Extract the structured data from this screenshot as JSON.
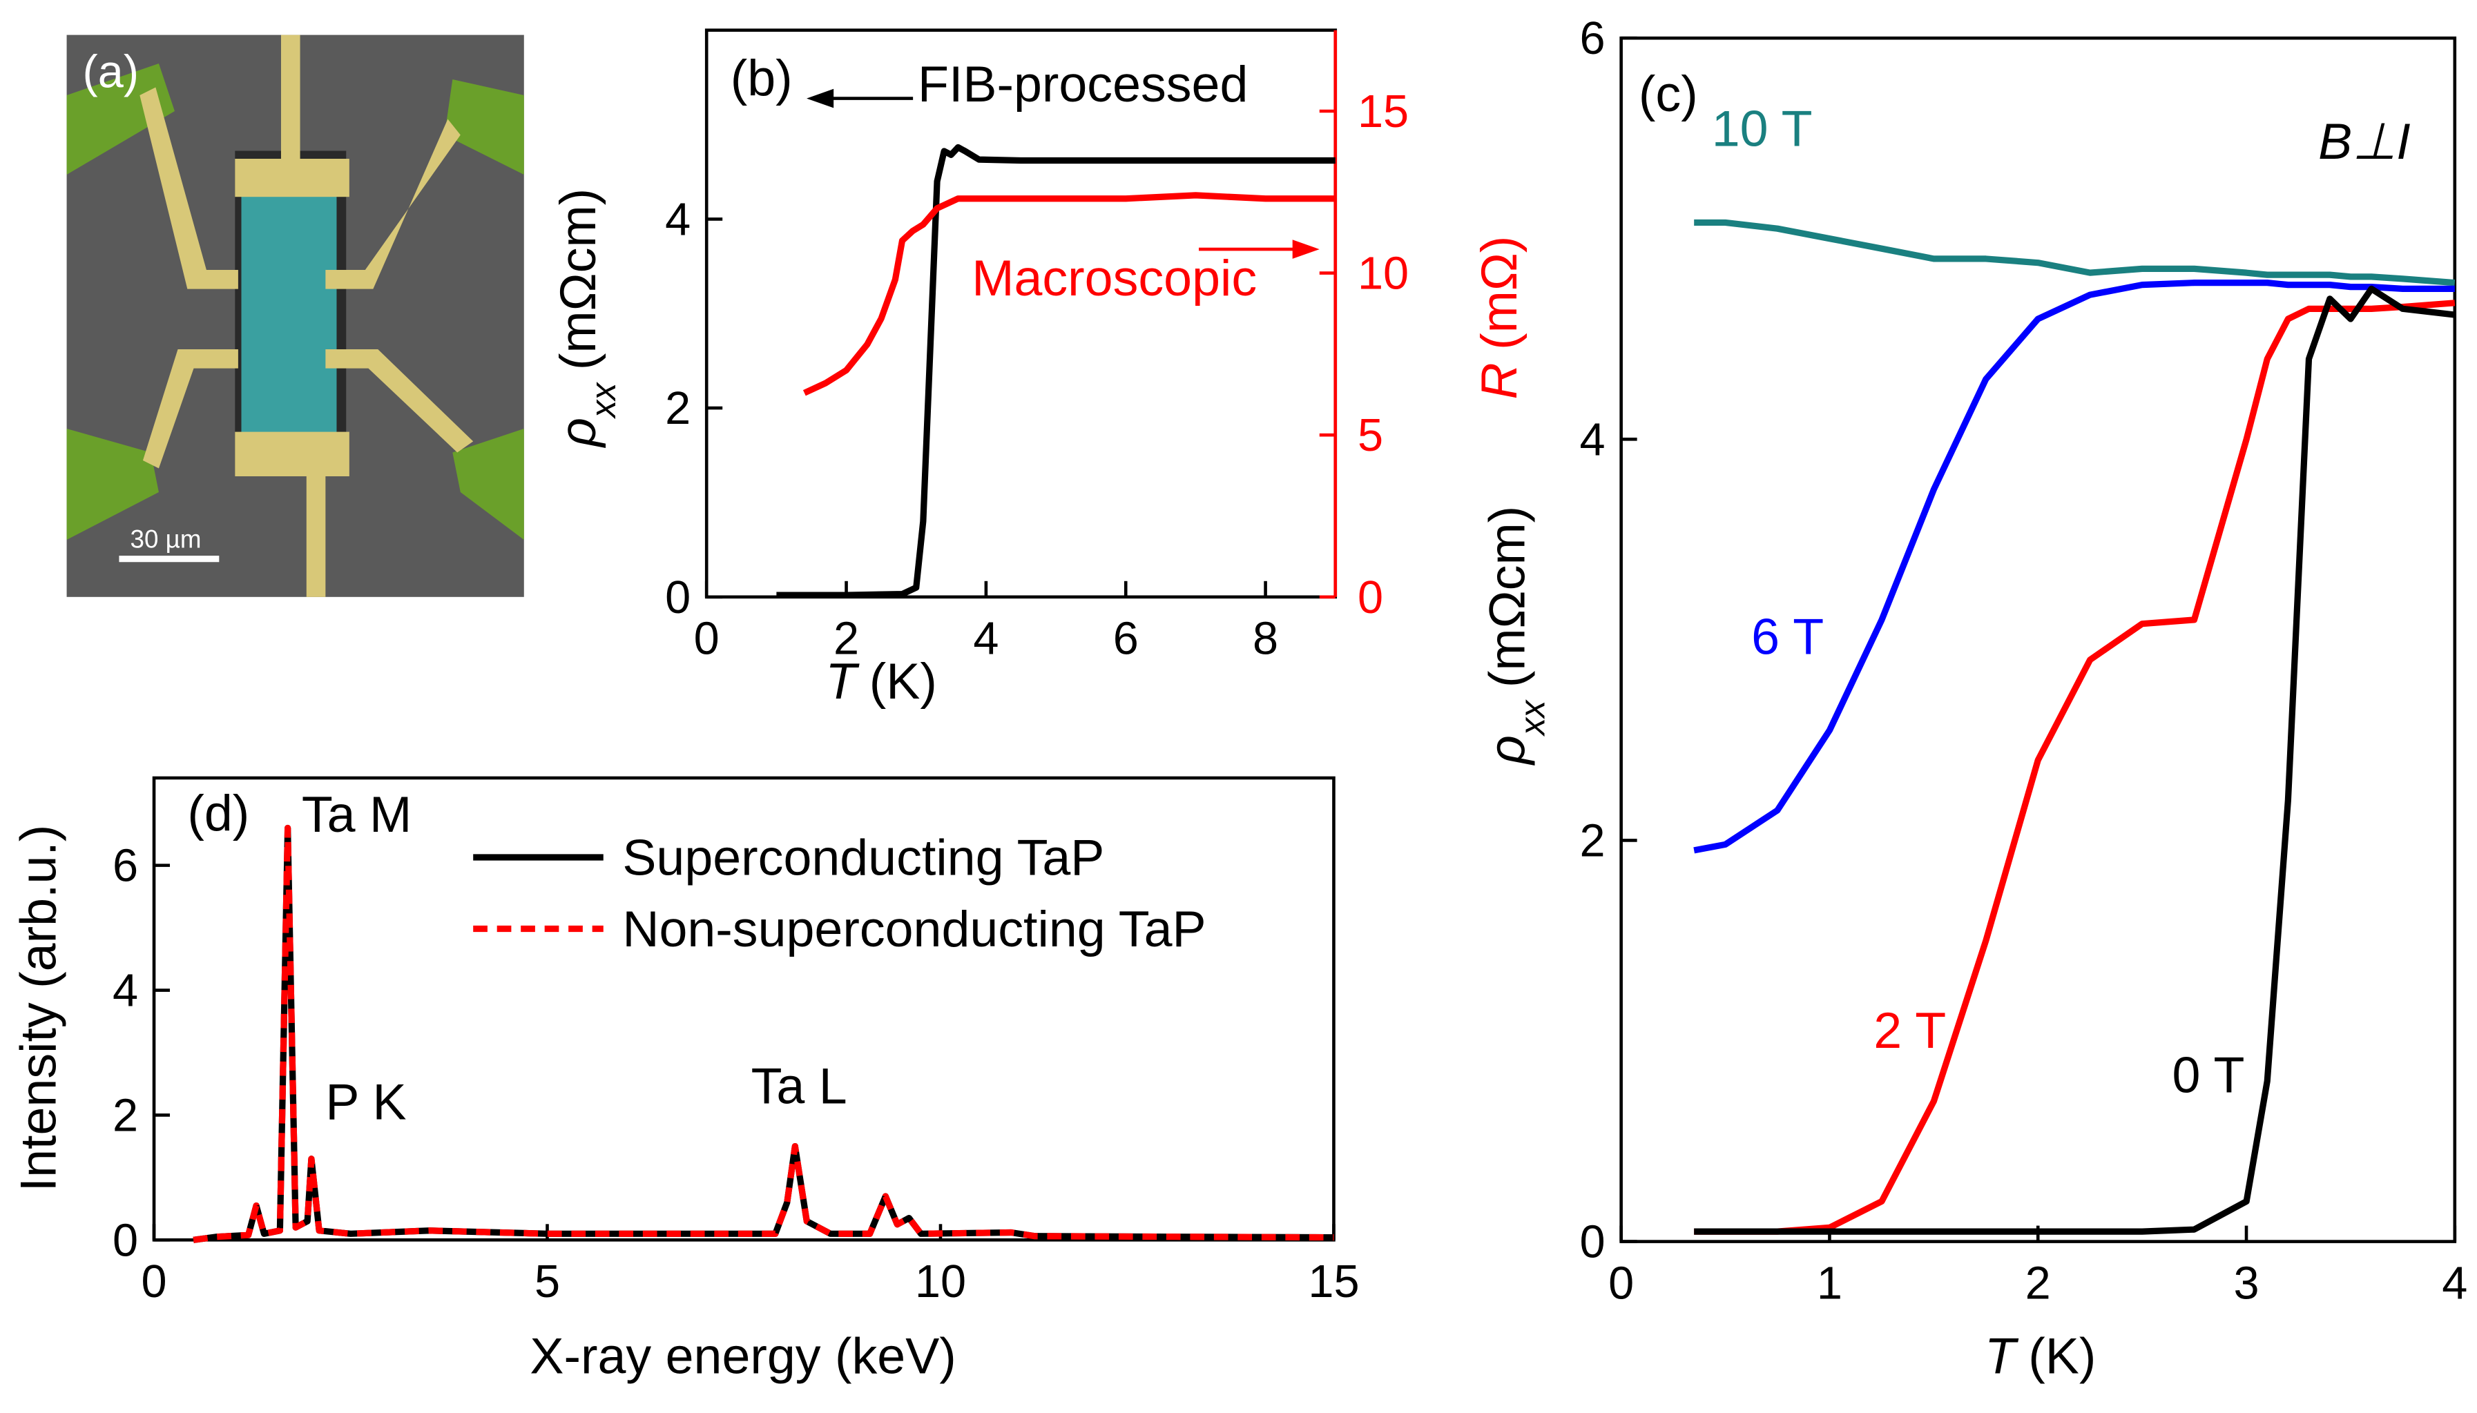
{
  "panel_a": {
    "label": "(a)",
    "scale_bar": "30 µm"
  },
  "chart_data": [
    {
      "type": "line",
      "xlim": [
        0,
        9
      ],
      "xticks": [
        0,
        2,
        4,
        6,
        8
      ],
      "ylim": [
        0,
        6
      ],
      "yticks": [
        0,
        2,
        4
      ],
      "y2lim": [
        0,
        17.5
      ],
      "y2ticks": [
        0,
        5,
        10,
        15
      ],
      "xlabel": [
        "T",
        "(K)"
      ],
      "ylabel": [
        "ρ",
        "xx",
        "(mΩcm)"
      ],
      "y2label": [
        "R",
        "(mΩ)"
      ],
      "annotations": [
        "(b)",
        "FIB-processed",
        "Macroscopic"
      ],
      "series": [
        {
          "color": "#000000",
          "x": [
            1.0,
            2.0,
            2.8,
            3.0,
            3.1,
            3.2,
            3.3,
            3.4,
            3.5,
            3.6,
            3.7,
            3.9,
            4.5,
            6,
            8,
            9
          ],
          "values": [
            0.02,
            0.02,
            0.03,
            0.1,
            0.8,
            2.6,
            4.4,
            4.72,
            4.68,
            4.76,
            4.72,
            4.63,
            4.62,
            4.62,
            4.62,
            4.62
          ]
        },
        {
          "color": "#ff0000",
          "axis": "y2",
          "x": [
            1.4,
            1.7,
            2.0,
            2.3,
            2.5,
            2.7,
            2.8,
            2.95,
            3.1,
            3.3,
            3.6,
            4,
            5,
            6,
            7,
            8,
            9
          ],
          "values": [
            6.3,
            6.6,
            7.0,
            7.8,
            8.6,
            9.8,
            11.0,
            11.3,
            11.5,
            12.0,
            12.3,
            12.3,
            12.3,
            12.3,
            12.4,
            12.3,
            12.3
          ]
        }
      ]
    },
    {
      "type": "line",
      "xlim": [
        0,
        4
      ],
      "xticks": [
        0,
        1,
        2,
        3,
        4
      ],
      "ylim": [
        0,
        6
      ],
      "yticks": [
        0,
        2,
        4,
        6
      ],
      "xlabel": [
        "T",
        "(K)"
      ],
      "ylabel": [
        "ρ",
        "xx",
        "(mΩcm)"
      ],
      "legend": "inline",
      "annotations": [
        "(c)",
        "B⊥I"
      ],
      "x": [
        0.35,
        0.5,
        0.75,
        1,
        1.25,
        1.5,
        1.75,
        2,
        2.25,
        2.5,
        2.75,
        3,
        3.1,
        3.2,
        3.3,
        3.4,
        3.5,
        3.6,
        3.75,
        4
      ],
      "series": [
        {
          "name": "10 T",
          "color": "#1a8080",
          "values": [
            5.08,
            5.08,
            5.05,
            5.0,
            4.95,
            4.9,
            4.9,
            4.88,
            4.83,
            4.85,
            4.85,
            4.83,
            4.82,
            4.82,
            4.82,
            4.82,
            4.81,
            4.81,
            4.8,
            4.78
          ]
        },
        {
          "name": "6 T",
          "color": "#0000ff",
          "values": [
            1.95,
            1.98,
            2.15,
            2.55,
            3.1,
            3.75,
            4.3,
            4.6,
            4.72,
            4.77,
            4.78,
            4.78,
            4.78,
            4.77,
            4.77,
            4.77,
            4.76,
            4.76,
            4.75,
            4.75
          ]
        },
        {
          "name": "2 T",
          "color": "#ff0000",
          "values": [
            0.05,
            0.05,
            0.05,
            0.07,
            0.2,
            0.7,
            1.5,
            2.4,
            2.9,
            3.08,
            3.1,
            4.0,
            4.4,
            4.6,
            4.65,
            4.65,
            4.65,
            4.65,
            4.66,
            4.68
          ]
        },
        {
          "name": "0 T",
          "color": "#000000",
          "values": [
            0.05,
            0.05,
            0.05,
            0.05,
            0.05,
            0.05,
            0.05,
            0.05,
            0.05,
            0.05,
            0.06,
            0.2,
            0.8,
            2.2,
            4.4,
            4.7,
            4.6,
            4.75,
            4.65,
            4.62
          ]
        }
      ]
    },
    {
      "type": "line",
      "xlim": [
        0,
        15
      ],
      "xticks": [
        0,
        5,
        10,
        15
      ],
      "ylim": [
        0,
        7.4
      ],
      "yticks": [
        0,
        2,
        4,
        6
      ],
      "xlabel": "X-ray energy (keV)",
      "ylabel": "Intensity (arb.u.)",
      "legend": "upper center",
      "annotations": [
        "(d)",
        "Ta M",
        "P K",
        "Ta L"
      ],
      "x": [
        0.5,
        0.8,
        1.2,
        1.3,
        1.4,
        1.6,
        1.7,
        1.8,
        1.95,
        2.0,
        2.1,
        2.5,
        3.5,
        5,
        7,
        7.9,
        8.05,
        8.15,
        8.3,
        8.6,
        9.1,
        9.3,
        9.45,
        9.6,
        9.75,
        10.9,
        11.2,
        13,
        15
      ],
      "series": [
        {
          "name": "Superconducting TaP",
          "color": "#000000",
          "dashed": false,
          "values": [
            0,
            0.05,
            0.08,
            0.55,
            0.1,
            0.15,
            6.6,
            0.2,
            0.3,
            1.3,
            0.15,
            0.1,
            0.15,
            0.1,
            0.1,
            0.1,
            0.6,
            1.5,
            0.3,
            0.1,
            0.1,
            0.7,
            0.25,
            0.35,
            0.1,
            0.12,
            0.06,
            0.05,
            0.04
          ]
        },
        {
          "name": "Non-superconducting TaP",
          "color": "#ff0000",
          "dashed": true,
          "values": [
            0,
            0.05,
            0.08,
            0.55,
            0.1,
            0.15,
            6.6,
            0.2,
            0.3,
            1.3,
            0.15,
            0.1,
            0.15,
            0.1,
            0.1,
            0.1,
            0.6,
            1.5,
            0.3,
            0.1,
            0.1,
            0.7,
            0.25,
            0.35,
            0.1,
            0.12,
            0.06,
            0.05,
            0.04
          ]
        }
      ]
    }
  ]
}
